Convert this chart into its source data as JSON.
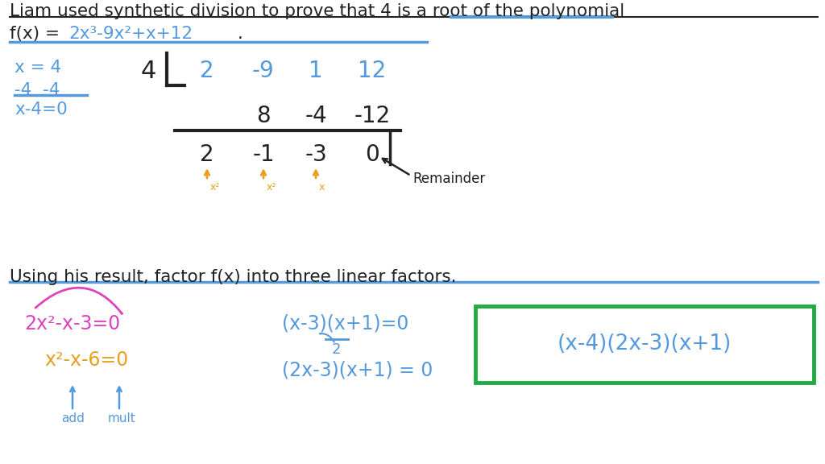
{
  "bg_color": "#FFFFFF",
  "blue_color": "#5599DD",
  "orange_color": "#E8A020",
  "magenta_color": "#DD44BB",
  "green_color": "#22AA44",
  "dark_color": "#222222",
  "synth_coeffs": [
    "2",
    "-9",
    "1",
    "12"
  ],
  "synth_row2": [
    "8",
    "-4",
    "-12"
  ],
  "synth_result": [
    "2",
    "-1",
    "-3",
    "0"
  ],
  "power_labels": [
    "x²",
    "x²",
    "x",
    "#"
  ],
  "remainder_label": "Remainder",
  "box_text": "(x-4)(2x-3)(x+1)",
  "question_line": "Using his result, factor f(x) into three linear factors.",
  "add_label": "add",
  "mult_label": "mult"
}
